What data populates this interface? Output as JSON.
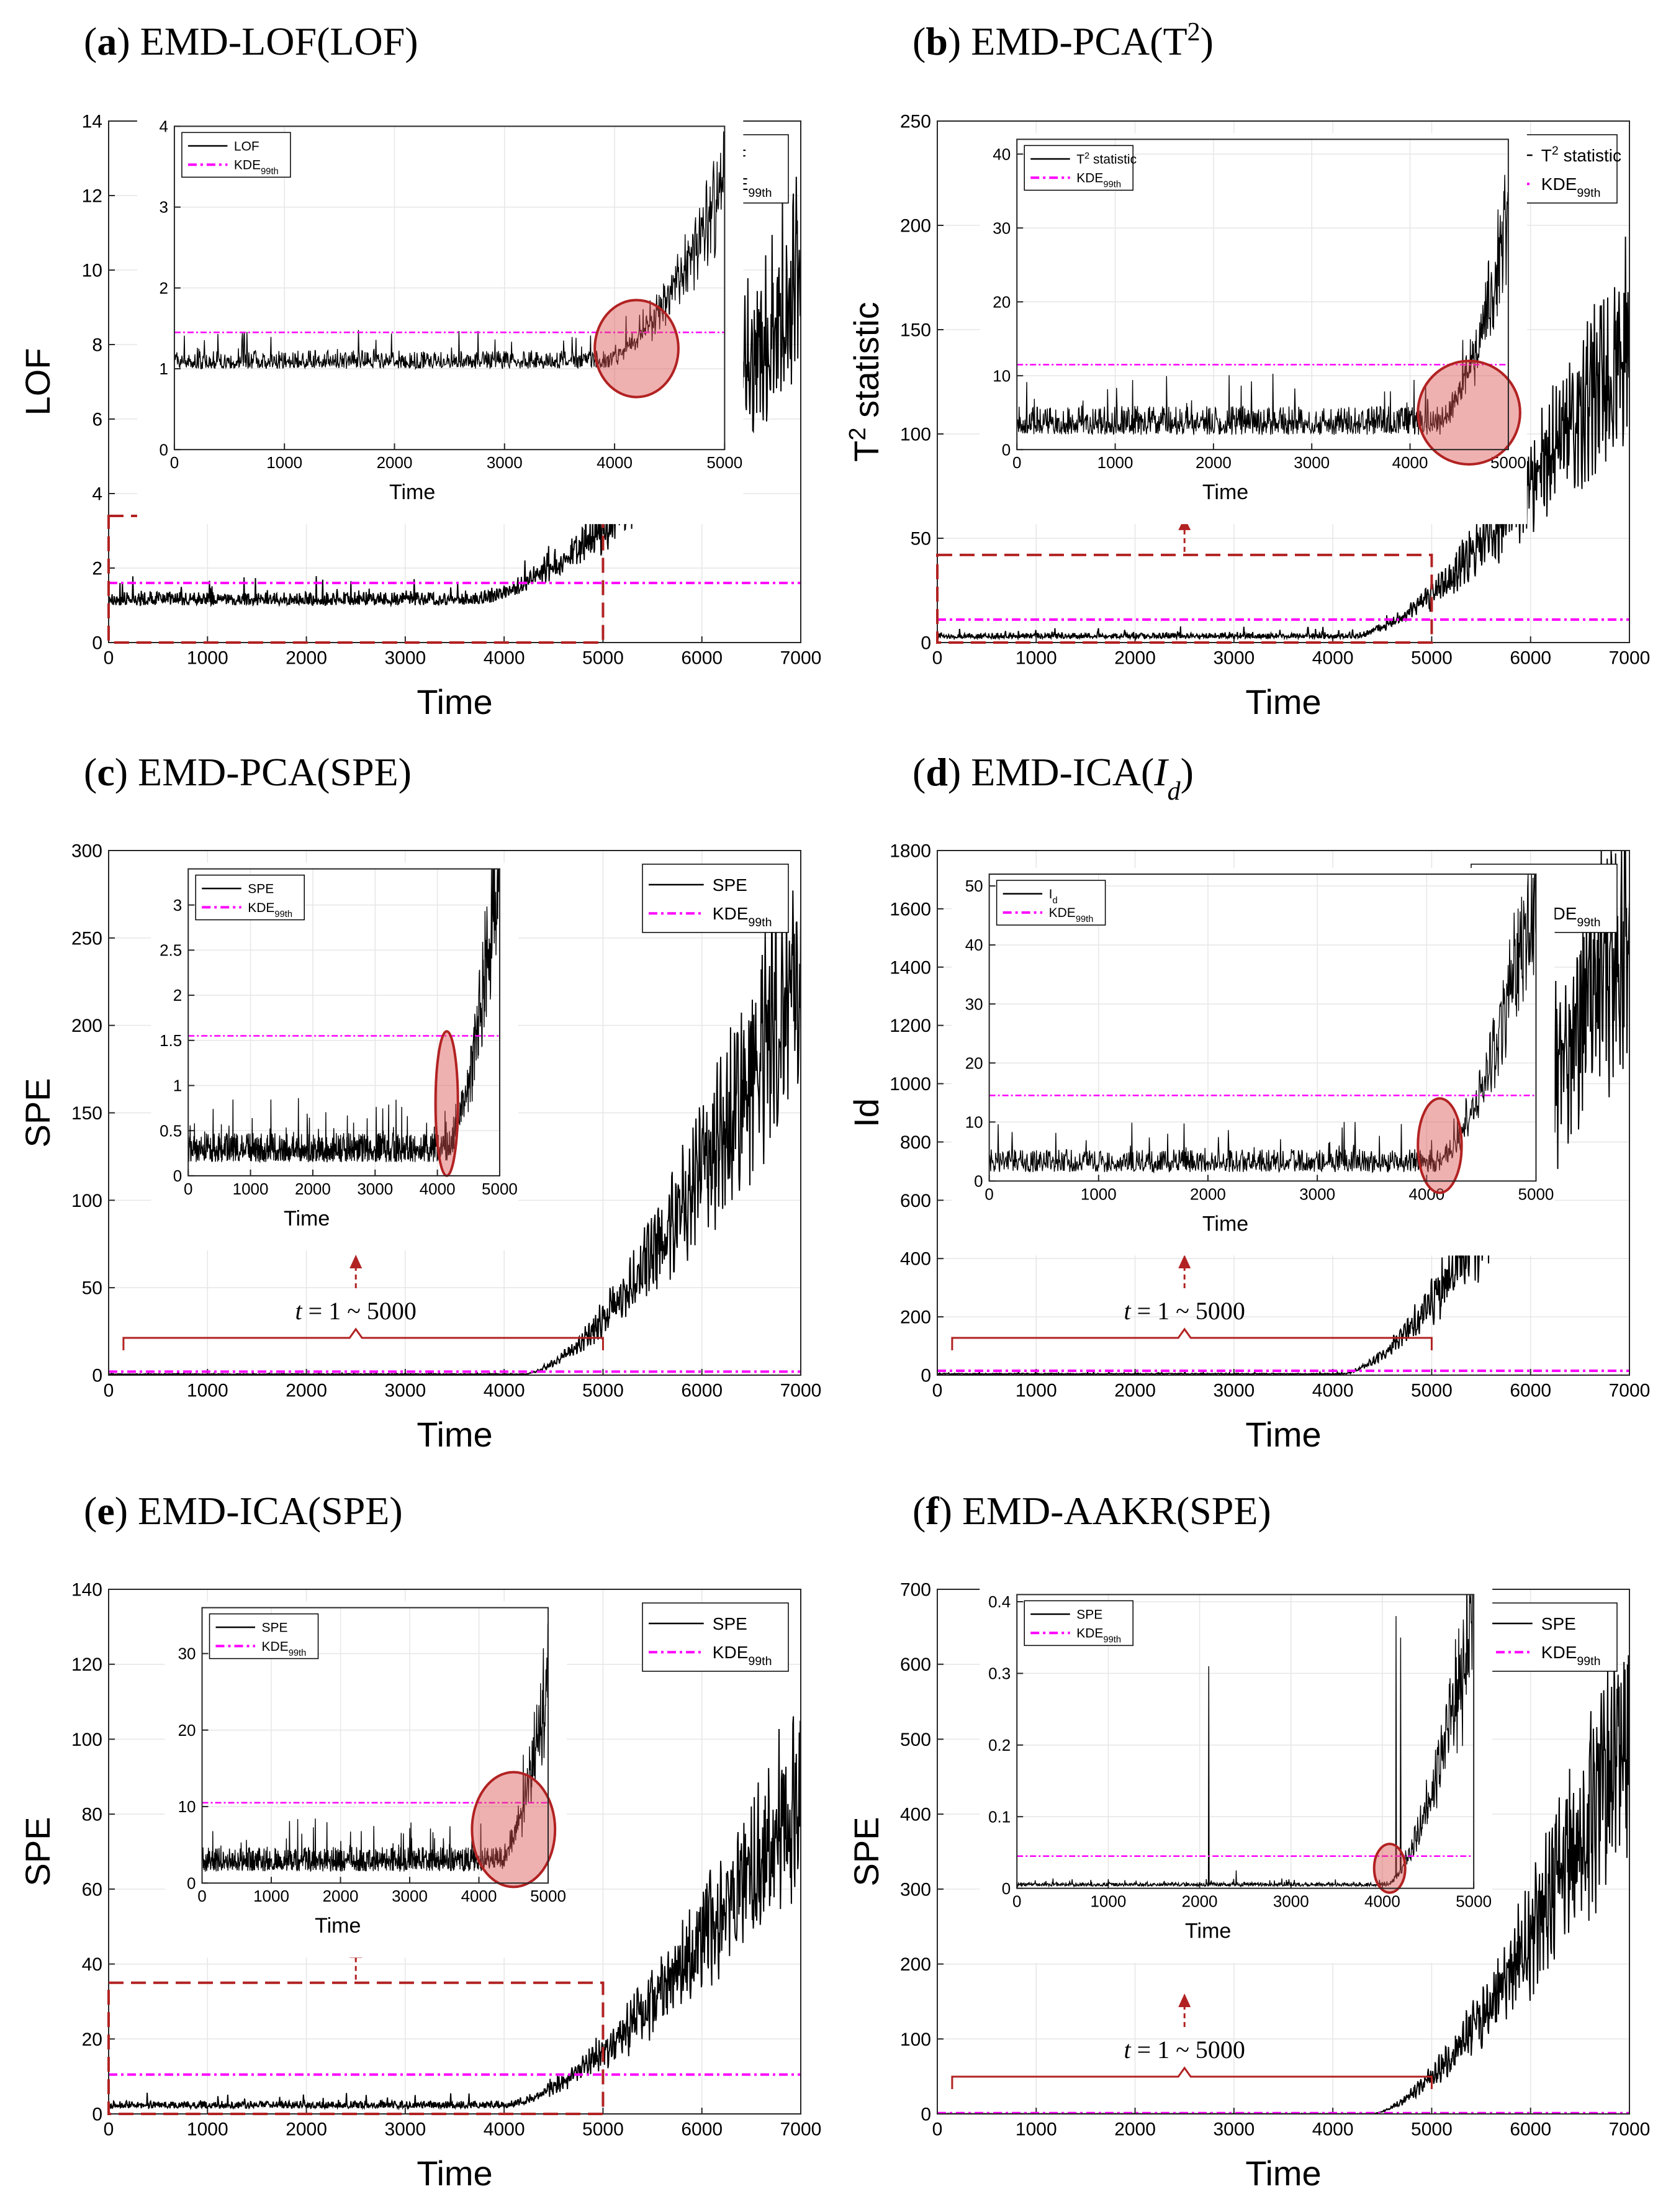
{
  "colors": {
    "signal": "#000000",
    "threshold": "#ff00ff",
    "highlight": "#b22222",
    "circle_fill": "#d9534f",
    "grid": "#e6e6e6"
  },
  "panels": [
    {
      "id": "a",
      "caption": {
        "letter": "(a)",
        "method": "EMD-LOF",
        "stat": "LOF",
        "stat_sup": "",
        "stat_sub": "",
        "stat_italic": false
      },
      "chart_data": {
        "type": "line",
        "xlabel": "Time",
        "ylabel": "LOF",
        "ylabel_sup": "",
        "ylabel_sub": "",
        "xlim": [
          0,
          7000
        ],
        "ylim": [
          0,
          14
        ],
        "xticks": [
          0,
          1000,
          2000,
          3000,
          4000,
          5000,
          6000,
          7000
        ],
        "yticks": [
          0,
          2,
          4,
          6,
          8,
          10,
          12,
          14
        ],
        "threshold": 1.6,
        "baseline": 1.0,
        "noise": 0.55,
        "onset": 3700,
        "end_value": 9.5,
        "legend": {
          "signal": "LOF",
          "signal_sup": "",
          "signal_sub": "",
          "threshold": "KDE",
          "threshold_sub": "99th"
        },
        "marker": "box",
        "box_ymax": 3.4,
        "range_label": "",
        "inset": {
          "xlim": [
            0,
            5000
          ],
          "ylim": [
            0,
            4
          ],
          "xticks": [
            0,
            1000,
            2000,
            3000,
            4000,
            5000
          ],
          "yticks": [
            0,
            1,
            2,
            3,
            4
          ],
          "xlabel": "Time",
          "threshold": 1.45,
          "baseline": 1.0,
          "noise": 0.35,
          "onset": 3900,
          "end_value": 3.2,
          "circle": {
            "cx": 4200,
            "cy": 1.25,
            "rx": 380,
            "ry": 0.6
          }
        }
      }
    },
    {
      "id": "b",
      "caption": {
        "letter": "(b)",
        "method": "EMD-PCA",
        "stat": "T",
        "stat_sup": "2",
        "stat_sub": "",
        "stat_italic": false
      },
      "chart_data": {
        "type": "line",
        "xlabel": "Time",
        "ylabel": "T",
        "ylabel_sup": "2",
        "ylabel_sub": " statistic",
        "xlim": [
          0,
          7000
        ],
        "ylim": [
          0,
          250
        ],
        "xticks": [
          0,
          1000,
          2000,
          3000,
          4000,
          5000,
          6000,
          7000
        ],
        "yticks": [
          0,
          50,
          100,
          150,
          200,
          250
        ],
        "threshold": 11,
        "baseline": 2,
        "noise": 4,
        "onset": 4200,
        "end_value": 150,
        "legend": {
          "signal": "T",
          "signal_sup": "2",
          "signal_sub": " statistic",
          "threshold": "KDE",
          "threshold_sub": "99th"
        },
        "marker": "box",
        "box_ymax": 42,
        "range_label": "",
        "inset": {
          "xlim": [
            0,
            5000
          ],
          "ylim": [
            0,
            42
          ],
          "xticks": [
            0,
            1000,
            2000,
            3000,
            4000,
            5000
          ],
          "yticks": [
            0,
            10,
            20,
            30,
            40
          ],
          "xlabel": "Time",
          "threshold": 11.5,
          "baseline": 2,
          "noise": 6,
          "onset": 4300,
          "end_value": 30,
          "circle": {
            "cx": 4600,
            "cy": 5,
            "rx": 520,
            "ry": 7
          }
        }
      }
    },
    {
      "id": "c",
      "caption": {
        "letter": "(c)",
        "method": "EMD-PCA",
        "stat": "SPE",
        "stat_sup": "",
        "stat_sub": "",
        "stat_italic": false
      },
      "chart_data": {
        "type": "line",
        "xlabel": "Time",
        "ylabel": "SPE",
        "ylabel_sup": "",
        "ylabel_sub": "",
        "xlim": [
          0,
          7000
        ],
        "ylim": [
          0,
          300
        ],
        "xticks": [
          0,
          1000,
          2000,
          3000,
          4000,
          5000,
          6000,
          7000
        ],
        "yticks": [
          0,
          50,
          100,
          150,
          200,
          250,
          300
        ],
        "threshold": 2,
        "baseline": 0.4,
        "noise": 0.6,
        "onset": 4200,
        "end_value": 235,
        "legend": {
          "signal": "SPE",
          "signal_sup": "",
          "signal_sub": "",
          "threshold": "KDE",
          "threshold_sub": "99th"
        },
        "marker": "brace",
        "box_ymax": 0,
        "range_label": "t = 1 ~ 5000",
        "inset": {
          "xlim": [
            0,
            5000
          ],
          "ylim": [
            0,
            3.4
          ],
          "xticks": [
            0,
            1000,
            2000,
            3000,
            4000,
            5000
          ],
          "yticks": [
            0,
            0.5,
            1,
            1.5,
            2,
            2.5,
            3
          ],
          "xlabel": "Time",
          "threshold": 1.55,
          "baseline": 0.15,
          "noise": 0.5,
          "onset": 4150,
          "end_value": 3.4,
          "circle": {
            "cx": 4150,
            "cy": 0.8,
            "rx": 180,
            "ry": 0.8
          }
        }
      }
    },
    {
      "id": "d",
      "caption": {
        "letter": "(d)",
        "method": "EMD-ICA",
        "stat": "I",
        "stat_sup": "",
        "stat_sub": "d",
        "stat_italic": true
      },
      "chart_data": {
        "type": "line",
        "xlabel": "Time",
        "ylabel": "I",
        "ylabel_sup": "",
        "ylabel_sub": "d",
        "xlim": [
          0,
          7000
        ],
        "ylim": [
          0,
          1800
        ],
        "xticks": [
          0,
          1000,
          2000,
          3000,
          4000,
          5000,
          6000,
          7000
        ],
        "yticks": [
          0,
          200,
          400,
          600,
          800,
          1000,
          1200,
          1400,
          1600,
          1800
        ],
        "threshold": 15,
        "baseline": 3,
        "noise": 5,
        "onset": 4100,
        "end_value": 1620,
        "legend": {
          "signal": "I",
          "signal_sup": "",
          "signal_sub": "d",
          "threshold": "KDE",
          "threshold_sub": "99th"
        },
        "marker": "brace",
        "box_ymax": 0,
        "range_label": "t = 1 ~ 5000",
        "inset": {
          "xlim": [
            0,
            5000
          ],
          "ylim": [
            0,
            52
          ],
          "xticks": [
            0,
            1000,
            2000,
            3000,
            4000,
            5000
          ],
          "yticks": [
            0,
            10,
            20,
            30,
            40,
            50
          ],
          "xlabel": "Time",
          "threshold": 14.5,
          "baseline": 1.5,
          "noise": 6,
          "onset": 4100,
          "end_value": 48,
          "circle": {
            "cx": 4120,
            "cy": 6,
            "rx": 200,
            "ry": 8
          }
        }
      }
    },
    {
      "id": "e",
      "caption": {
        "letter": "(e)",
        "method": "EMD-ICA",
        "stat": "SPE",
        "stat_sup": "",
        "stat_sub": "",
        "stat_italic": false
      },
      "chart_data": {
        "type": "line",
        "xlabel": "Time",
        "ylabel": "SPE",
        "ylabel_sup": "",
        "ylabel_sub": "",
        "xlim": [
          0,
          7000
        ],
        "ylim": [
          0,
          140
        ],
        "xticks": [
          0,
          1000,
          2000,
          3000,
          4000,
          5000,
          6000,
          7000
        ],
        "yticks": [
          0,
          20,
          40,
          60,
          80,
          100,
          120,
          140
        ],
        "threshold": 10.5,
        "baseline": 1.5,
        "noise": 3,
        "onset": 4000,
        "end_value": 85,
        "legend": {
          "signal": "SPE",
          "signal_sup": "",
          "signal_sub": "",
          "threshold": "KDE",
          "threshold_sub": "99th"
        },
        "marker": "box",
        "box_ymax": 35,
        "range_label": "",
        "inset": {
          "xlim": [
            0,
            5000
          ],
          "ylim": [
            0,
            36
          ],
          "xticks": [
            0,
            1000,
            2000,
            3000,
            4000,
            5000
          ],
          "yticks": [
            0,
            10,
            20,
            30
          ],
          "xlabel": "Time",
          "threshold": 10.5,
          "baseline": 1.5,
          "noise": 5,
          "onset": 4300,
          "end_value": 25,
          "circle": {
            "cx": 4500,
            "cy": 7,
            "rx": 600,
            "ry": 7.5
          }
        }
      }
    },
    {
      "id": "f",
      "caption": {
        "letter": "(f)",
        "method": "EMD-AAKR",
        "stat": "SPE",
        "stat_sup": "",
        "stat_sub": "",
        "stat_italic": false
      },
      "chart_data": {
        "type": "line",
        "xlabel": "Time",
        "ylabel": "SPE",
        "ylabel_sup": "",
        "ylabel_sub": "",
        "xlim": [
          0,
          7000
        ],
        "ylim": [
          0,
          700
        ],
        "xticks": [
          0,
          1000,
          2000,
          3000,
          4000,
          5000,
          6000,
          7000
        ],
        "yticks": [
          0,
          100,
          200,
          300,
          400,
          500,
          600,
          700
        ],
        "threshold": 1,
        "baseline": 0.2,
        "noise": 0.4,
        "onset": 4400,
        "end_value": 520,
        "legend": {
          "signal": "SPE",
          "signal_sup": "",
          "signal_sub": "",
          "threshold": "KDE",
          "threshold_sub": "99th"
        },
        "marker": "brace",
        "box_ymax": 0,
        "range_label": "t = 1 ~ 5000",
        "inset": {
          "xlim": [
            0,
            5000
          ],
          "ylim": [
            0,
            0.41
          ],
          "xticks": [
            0,
            1000,
            2000,
            3000,
            4000,
            5000
          ],
          "yticks": [
            0,
            0.1,
            0.2,
            0.3,
            0.4
          ],
          "xlabel": "Time",
          "threshold": 0.045,
          "baseline": 0.003,
          "noise": 0.008,
          "onset": 4050,
          "end_value": 0.38,
          "spikes": [
            [
              2100,
              0.31
            ],
            [
              2400,
              0.025
            ],
            [
              4150,
              0.38
            ],
            [
              4200,
              0.35
            ]
          ],
          "circle": {
            "cx": 4080,
            "cy": 0.028,
            "rx": 170,
            "ry": 0.034
          }
        }
      }
    }
  ]
}
